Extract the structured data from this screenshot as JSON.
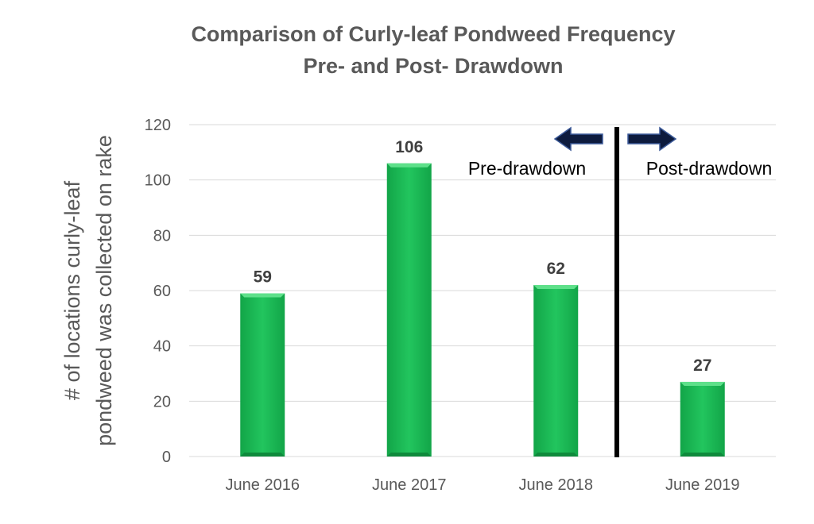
{
  "chart_data": {
    "type": "bar",
    "title": [
      "Comparison of Curly-leaf Pondweed Frequency",
      "Pre- and Post- Drawdown"
    ],
    "ylabel": [
      "# of locations curly-leaf",
      "pondweed was collected on rake"
    ],
    "xlabel": "",
    "categories": [
      "June 2016",
      "June 2017",
      "June 2018",
      "June 2019"
    ],
    "values": [
      59,
      106,
      62,
      27
    ],
    "data_labels": [
      "59",
      "106",
      "62",
      "27"
    ],
    "ylim": [
      0,
      120
    ],
    "yticks": [
      0,
      20,
      40,
      60,
      80,
      100,
      120
    ],
    "grid": true,
    "bar_color": "#1db954",
    "divider": {
      "between": [
        "June 2018",
        "June 2019"
      ],
      "left_label": "Pre-drawdown",
      "right_label": "Post-drawdown",
      "arrow_color": "#0d1b3e"
    }
  }
}
